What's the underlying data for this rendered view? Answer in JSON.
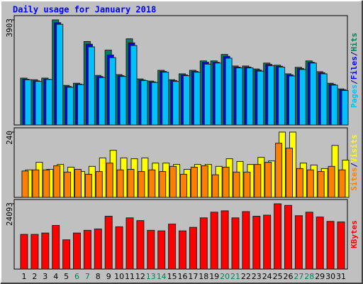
{
  "chart_data": [
    {
      "type": "bar",
      "title": "Daily usage for January 2018",
      "legend_separator": "/",
      "ylim": [
        0,
        3903
      ],
      "yticks": [
        3903
      ],
      "series": [
        {
          "name": "Pages",
          "color": "#00c0ff",
          "values": [
            1680,
            1620,
            1690,
            3740,
            1400,
            1500,
            2900,
            1760,
            2500,
            1800,
            2950,
            1650,
            1580,
            1960,
            1620,
            1830,
            1960,
            2260,
            2300,
            2480,
            2120,
            2120,
            2000,
            2200,
            2150,
            1820,
            2060,
            2300,
            1900,
            1480,
            1280
          ]
        },
        {
          "name": "Files",
          "color": "#0000ff",
          "values": [
            1700,
            1640,
            1700,
            3800,
            1430,
            1520,
            3000,
            1800,
            2600,
            1830,
            3050,
            1670,
            1600,
            1990,
            1650,
            1860,
            1990,
            2330,
            2330,
            2550,
            2150,
            2150,
            2040,
            2250,
            2180,
            1860,
            2100,
            2330,
            1940,
            1510,
            1310
          ]
        },
        {
          "name": "Hits",
          "color": "#00805c",
          "values": [
            1740,
            1680,
            1740,
            3903,
            1470,
            1550,
            3100,
            1840,
            2780,
            1870,
            3200,
            1710,
            1630,
            2030,
            1680,
            1900,
            2030,
            2380,
            2380,
            2620,
            2190,
            2190,
            2080,
            2300,
            2220,
            1900,
            2140,
            2380,
            1980,
            1550,
            1340
          ]
        }
      ]
    },
    {
      "type": "bar",
      "legend_separator": "/",
      "ylim": [
        0,
        240
      ],
      "yticks": [
        240
      ],
      "series": [
        {
          "name": "Sites",
          "color": "#ff8000",
          "values": [
            97,
            101,
            101,
            116,
            93,
            103,
            85,
            95,
            126,
            101,
            103,
            95,
            101,
            95,
            114,
            85,
            111,
            116,
            83,
            111,
            93,
            93,
            121,
            129,
            199,
            181,
            106,
            101,
            95,
            114,
            101
          ]
        },
        {
          "name": "Visits",
          "color": "#ffff00",
          "values": [
            101,
            129,
            103,
            121,
            111,
            95,
            114,
            145,
            173,
            145,
            142,
            145,
            126,
            126,
            121,
            103,
            121,
            121,
            114,
            142,
            132,
            121,
            147,
            134,
            240,
            240,
            126,
            119,
            106,
            191,
            137
          ]
        }
      ]
    },
    {
      "type": "bar",
      "ylim": [
        0,
        24093
      ],
      "yticks": [
        24093
      ],
      "categories": [
        "1",
        "2",
        "3",
        "4",
        "5",
        "6",
        "7",
        "8",
        "9",
        "10",
        "11",
        "12",
        "13",
        "14",
        "15",
        "16",
        "17",
        "18",
        "19",
        "20",
        "21",
        "22",
        "23",
        "24",
        "25",
        "26",
        "27",
        "28",
        "29",
        "30",
        "31"
      ],
      "category_colors": [
        "#000000",
        "#000000",
        "#000000",
        "#000000",
        "#000000",
        "#00805c",
        "#00805c",
        "#000000",
        "#000000",
        "#000000",
        "#000000",
        "#000000",
        "#00805c",
        "#00805c",
        "#000000",
        "#000000",
        "#000000",
        "#000000",
        "#000000",
        "#00805c",
        "#00805c",
        "#000000",
        "#000000",
        "#000000",
        "#000000",
        "#000000",
        "#00805c",
        "#00805c",
        "#000000",
        "#000000",
        "#000000"
      ],
      "series": [
        {
          "name": "KBytes",
          "color": "#ff0000",
          "values": [
            12800,
            12800,
            13300,
            16100,
            10800,
            13300,
            14300,
            14800,
            19500,
            15600,
            18900,
            17900,
            14300,
            14100,
            16600,
            14100,
            15400,
            18900,
            21000,
            21500,
            18900,
            21200,
            19500,
            19900,
            24093,
            23500,
            19700,
            21000,
            19200,
            17600,
            17400
          ]
        }
      ]
    }
  ]
}
